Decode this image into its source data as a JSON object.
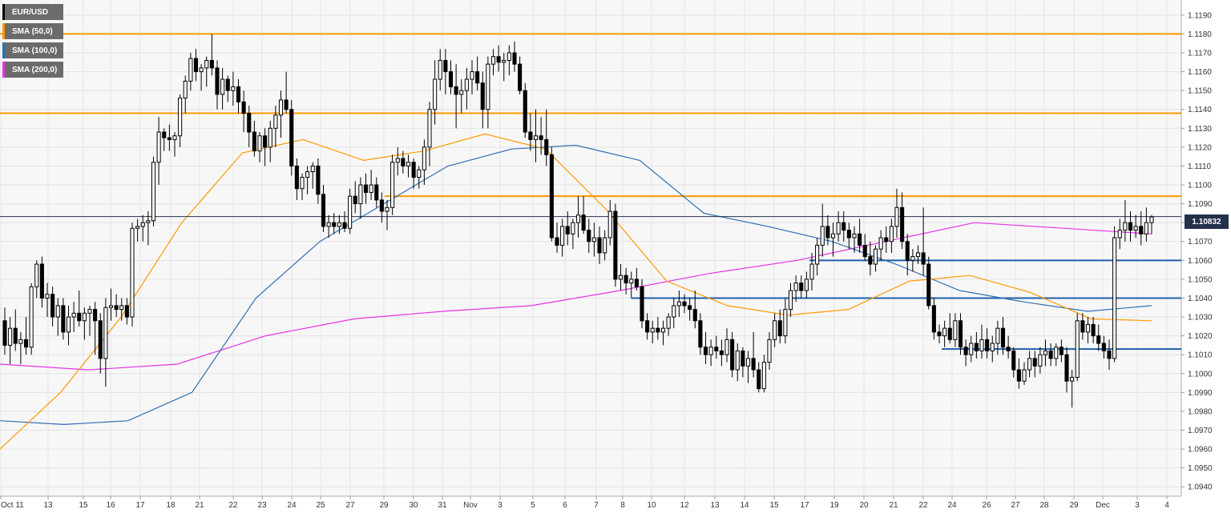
{
  "chart_data": {
    "type": "candlestick",
    "symbol": "EUR/USD",
    "legend": [
      {
        "label": "EUR/USD",
        "color": "#000000"
      },
      {
        "label": "SMA (50,0)",
        "color": "#ff9800"
      },
      {
        "label": "SMA (100,0)",
        "color": "#2f6eb5"
      },
      {
        "label": "SMA (200,0)",
        "color": "#e633e6"
      }
    ],
    "last_price_label": "1.10832",
    "last_price": 1.10832,
    "ylim": [
      1.0935,
      1.1198
    ],
    "y_ticks": [
      "1.0940",
      "1.0950",
      "1.0960",
      "1.0970",
      "1.0980",
      "1.0990",
      "1.1000",
      "1.1010",
      "1.1020",
      "1.1030",
      "1.1040",
      "1.1050",
      "1.1060",
      "1.1070",
      "1.1080",
      "1.1090",
      "1.1100",
      "1.1110",
      "1.1120",
      "1.1130",
      "1.1140",
      "1.1150",
      "1.1160",
      "1.1170",
      "1.1180",
      "1.1190"
    ],
    "x_ticks": [
      "Oct 11",
      "13",
      "15",
      "16",
      "17",
      "18",
      "21",
      "22",
      "23",
      "24",
      "25",
      "27",
      "29",
      "30",
      "31",
      "Nov",
      "3",
      "5",
      "6",
      "7",
      "8",
      "10",
      "12",
      "13",
      "14",
      "15",
      "17",
      "19",
      "20",
      "21",
      "22",
      "24",
      "26",
      "27",
      "28",
      "29",
      "Dec",
      "3",
      "4"
    ],
    "resistance_levels": [
      1.118,
      1.1138,
      1.1094
    ],
    "support_levels": [
      {
        "value": 1.106,
        "from": "19"
      },
      {
        "value": 1.104,
        "from": "8"
      },
      {
        "value": 1.1013,
        "from": "24"
      }
    ],
    "sma50": [
      1.096,
      1.099,
      1.103,
      1.108,
      1.1117,
      1.1124,
      1.1113,
      1.1118,
      1.1127,
      1.1119,
      1.1087,
      1.1049,
      1.1036,
      1.1031,
      1.1034,
      1.1049,
      1.1052,
      1.1043,
      1.1029,
      1.1028
    ],
    "sma100": [
      1.0975,
      1.0973,
      1.0975,
      1.099,
      1.104,
      1.107,
      1.109,
      1.111,
      1.1119,
      1.1121,
      1.1113,
      1.1085,
      1.1078,
      1.107,
      1.1058,
      1.1044,
      1.1038,
      1.1033,
      1.1036
    ],
    "sma200": [
      1.1005,
      1.1002,
      1.1005,
      1.102,
      1.1029,
      1.1033,
      1.1036,
      1.1044,
      1.1053,
      1.106,
      1.107,
      1.108,
      1.1077,
      1.1074
    ],
    "ohlc": [
      [
        1.1028,
        1.1035,
        1.101,
        1.1015
      ],
      [
        1.1015,
        1.103,
        1.1005,
        1.1024
      ],
      [
        1.1024,
        1.1034,
        1.1012,
        1.1016
      ],
      [
        1.1016,
        1.1022,
        1.1005,
        1.1018
      ],
      [
        1.1018,
        1.103,
        1.101,
        1.1014
      ],
      [
        1.1014,
        1.1048,
        1.101,
        1.1046
      ],
      [
        1.1046,
        1.106,
        1.104,
        1.1058
      ],
      [
        1.1058,
        1.1062,
        1.1035,
        1.104
      ],
      [
        1.104,
        1.1048,
        1.103,
        1.1042
      ],
      [
        1.1042,
        1.1046,
        1.1025,
        1.103
      ],
      [
        1.103,
        1.104,
        1.102,
        1.1036
      ],
      [
        1.1036,
        1.104,
        1.1018,
        1.1022
      ],
      [
        1.1022,
        1.1036,
        1.1015,
        1.103
      ],
      [
        1.103,
        1.1038,
        1.1022,
        1.1032
      ],
      [
        1.1032,
        1.1044,
        1.1025,
        1.1028
      ],
      [
        1.1028,
        1.1035,
        1.1018,
        1.1032
      ],
      [
        1.1032,
        1.1036,
        1.102,
        1.1034
      ],
      [
        1.1034,
        1.1038,
        1.101,
        1.1028
      ],
      [
        1.1028,
        1.1032,
        1.1,
        1.1008
      ],
      [
        1.1008,
        1.104,
        1.0993,
        1.1035
      ],
      [
        1.1035,
        1.1045,
        1.1028,
        1.1036
      ],
      [
        1.1036,
        1.1042,
        1.103,
        1.1034
      ],
      [
        1.1034,
        1.104,
        1.1028,
        1.1036
      ],
      [
        1.1036,
        1.104,
        1.1026,
        1.103
      ],
      [
        1.103,
        1.108,
        1.1025,
        1.1077
      ],
      [
        1.1077,
        1.1082,
        1.107,
        1.1078
      ],
      [
        1.1078,
        1.1084,
        1.107,
        1.108
      ],
      [
        1.108,
        1.1086,
        1.1068,
        1.1081
      ],
      [
        1.1081,
        1.1115,
        1.1078,
        1.1112
      ],
      [
        1.1112,
        1.1136,
        1.11,
        1.1128
      ],
      [
        1.1128,
        1.113,
        1.1118,
        1.1125
      ],
      [
        1.1125,
        1.1132,
        1.1118,
        1.1124
      ],
      [
        1.1124,
        1.1128,
        1.1115,
        1.1126
      ],
      [
        1.1126,
        1.1148,
        1.112,
        1.1146
      ],
      [
        1.1146,
        1.1158,
        1.1138,
        1.1155
      ],
      [
        1.1155,
        1.117,
        1.115,
        1.1167
      ],
      [
        1.1167,
        1.1172,
        1.1155,
        1.116
      ],
      [
        1.116,
        1.1164,
        1.115,
        1.1162
      ],
      [
        1.1162,
        1.1168,
        1.1152,
        1.1166
      ],
      [
        1.1166,
        1.118,
        1.1158,
        1.1162
      ],
      [
        1.1162,
        1.1166,
        1.114,
        1.1148
      ],
      [
        1.1148,
        1.1162,
        1.114,
        1.1156
      ],
      [
        1.1156,
        1.1158,
        1.1144,
        1.115
      ],
      [
        1.115,
        1.116,
        1.1142,
        1.1152
      ],
      [
        1.1152,
        1.1156,
        1.1138,
        1.1144
      ],
      [
        1.1144,
        1.115,
        1.1128,
        1.1138
      ],
      [
        1.1138,
        1.1142,
        1.112,
        1.1128
      ],
      [
        1.1128,
        1.1134,
        1.1115,
        1.1118
      ],
      [
        1.1118,
        1.1128,
        1.1112,
        1.1126
      ],
      [
        1.1126,
        1.113,
        1.111,
        1.112
      ],
      [
        1.112,
        1.1134,
        1.1112,
        1.113
      ],
      [
        1.113,
        1.1142,
        1.112,
        1.1137
      ],
      [
        1.1137,
        1.115,
        1.1125,
        1.1145
      ],
      [
        1.1145,
        1.116,
        1.1138,
        1.114
      ],
      [
        1.114,
        1.1145,
        1.1105,
        1.111
      ],
      [
        1.111,
        1.1114,
        1.1092,
        1.1098
      ],
      [
        1.1098,
        1.1106,
        1.1092,
        1.1104
      ],
      [
        1.1104,
        1.111,
        1.1095,
        1.1107
      ],
      [
        1.1107,
        1.1112,
        1.1098,
        1.111
      ],
      [
        1.111,
        1.1114,
        1.109,
        1.1095
      ],
      [
        1.1095,
        1.11,
        1.1075,
        1.1078
      ],
      [
        1.1078,
        1.1084,
        1.1072,
        1.108
      ],
      [
        1.108,
        1.1085,
        1.1074,
        1.1078
      ],
      [
        1.1078,
        1.1084,
        1.1074,
        1.108
      ],
      [
        1.108,
        1.1086,
        1.1075,
        1.1077
      ],
      [
        1.1077,
        1.1098,
        1.1074,
        1.1094
      ],
      [
        1.1094,
        1.1102,
        1.1085,
        1.109
      ],
      [
        1.109,
        1.1104,
        1.1082,
        1.11
      ],
      [
        1.11,
        1.1106,
        1.109,
        1.1096
      ],
      [
        1.1096,
        1.1108,
        1.1092,
        1.11
      ],
      [
        1.11,
        1.1104,
        1.1088,
        1.1092
      ],
      [
        1.1092,
        1.1096,
        1.108,
        1.1086
      ],
      [
        1.1086,
        1.1092,
        1.1076,
        1.1088
      ],
      [
        1.1088,
        1.1116,
        1.1084,
        1.1112
      ],
      [
        1.1112,
        1.112,
        1.1105,
        1.1114
      ],
      [
        1.1114,
        1.1118,
        1.1106,
        1.111
      ],
      [
        1.111,
        1.1116,
        1.1104,
        1.1112
      ],
      [
        1.1112,
        1.1114,
        1.1098,
        1.1104
      ],
      [
        1.1104,
        1.111,
        1.1098,
        1.1108
      ],
      [
        1.1108,
        1.1124,
        1.11,
        1.112
      ],
      [
        1.112,
        1.1144,
        1.111,
        1.114
      ],
      [
        1.114,
        1.1166,
        1.1132,
        1.1156
      ],
      [
        1.1156,
        1.1172,
        1.115,
        1.1166
      ],
      [
        1.1166,
        1.1172,
        1.1148,
        1.116
      ],
      [
        1.116,
        1.1166,
        1.1148,
        1.1152
      ],
      [
        1.1152,
        1.1164,
        1.113,
        1.1148
      ],
      [
        1.1148,
        1.1156,
        1.1138,
        1.115
      ],
      [
        1.115,
        1.1162,
        1.114,
        1.1156
      ],
      [
        1.1156,
        1.1166,
        1.1148,
        1.116
      ],
      [
        1.116,
        1.1168,
        1.115,
        1.1154
      ],
      [
        1.1154,
        1.116,
        1.113,
        1.114
      ],
      [
        1.114,
        1.1168,
        1.113,
        1.1164
      ],
      [
        1.1164,
        1.1172,
        1.1158,
        1.1168
      ],
      [
        1.1168,
        1.1174,
        1.116,
        1.1165
      ],
      [
        1.1165,
        1.117,
        1.1155,
        1.1166
      ],
      [
        1.1166,
        1.1174,
        1.1158,
        1.117
      ],
      [
        1.117,
        1.1176,
        1.116,
        1.1164
      ],
      [
        1.1164,
        1.1168,
        1.1148,
        1.115
      ],
      [
        1.115,
        1.1154,
        1.1125,
        1.1128
      ],
      [
        1.1128,
        1.1138,
        1.1118,
        1.1124
      ],
      [
        1.1124,
        1.114,
        1.1112,
        1.1126
      ],
      [
        1.1126,
        1.1136,
        1.1116,
        1.1124
      ],
      [
        1.1124,
        1.114,
        1.111,
        1.1116
      ],
      [
        1.1116,
        1.112,
        1.107,
        1.1072
      ],
      [
        1.1072,
        1.108,
        1.1064,
        1.1068
      ],
      [
        1.1068,
        1.1082,
        1.1062,
        1.1078
      ],
      [
        1.1078,
        1.1086,
        1.1068,
        1.1074
      ],
      [
        1.1074,
        1.1082,
        1.1066,
        1.108
      ],
      [
        1.108,
        1.1094,
        1.1072,
        1.1084
      ],
      [
        1.1084,
        1.1094,
        1.1074,
        1.1076
      ],
      [
        1.1076,
        1.1082,
        1.1064,
        1.107
      ],
      [
        1.107,
        1.108,
        1.1062,
        1.1072
      ],
      [
        1.1072,
        1.1078,
        1.1058,
        1.1064
      ],
      [
        1.1064,
        1.1076,
        1.106,
        1.1072
      ],
      [
        1.1072,
        1.1092,
        1.1068,
        1.1086
      ],
      [
        1.1086,
        1.109,
        1.1046,
        1.105
      ],
      [
        1.105,
        1.1058,
        1.1044,
        1.1052
      ],
      [
        1.1052,
        1.1056,
        1.1042,
        1.1048
      ],
      [
        1.1048,
        1.1054,
        1.104,
        1.105
      ],
      [
        1.105,
        1.1056,
        1.1044,
        1.1046
      ],
      [
        1.1046,
        1.105,
        1.1024,
        1.1028
      ],
      [
        1.1028,
        1.1032,
        1.1018,
        1.1022
      ],
      [
        1.1022,
        1.1028,
        1.1016,
        1.1024
      ],
      [
        1.1024,
        1.103,
        1.1018,
        1.1022
      ],
      [
        1.1022,
        1.1028,
        1.1015,
        1.1024
      ],
      [
        1.1024,
        1.1032,
        1.102,
        1.103
      ],
      [
        1.103,
        1.104,
        1.1024,
        1.1036
      ],
      [
        1.1036,
        1.1044,
        1.103,
        1.1038
      ],
      [
        1.1038,
        1.1042,
        1.1032,
        1.1036
      ],
      [
        1.1036,
        1.104,
        1.1028,
        1.1034
      ],
      [
        1.1034,
        1.1044,
        1.1024,
        1.1028
      ],
      [
        1.1028,
        1.1032,
        1.101,
        1.1014
      ],
      [
        1.1014,
        1.1022,
        1.1005,
        1.101
      ],
      [
        1.101,
        1.1018,
        1.1004,
        1.1014
      ],
      [
        1.1014,
        1.102,
        1.1008,
        1.1012
      ],
      [
        1.1012,
        1.1018,
        1.1004,
        1.101
      ],
      [
        1.101,
        1.1024,
        1.1006,
        1.1018
      ],
      [
        1.1018,
        1.1022,
        1.0998,
        1.1002
      ],
      [
        1.1002,
        1.1016,
        1.0996,
        1.1012
      ],
      [
        1.1012,
        1.1014,
        1.0998,
        1.1004
      ],
      [
        1.1004,
        1.1012,
        1.0995,
        1.1008
      ],
      [
        1.1008,
        1.1022,
        1.0998,
        1.1002
      ],
      [
        1.1002,
        1.1006,
        1.099,
        1.0992
      ],
      [
        1.0992,
        1.101,
        1.099,
        1.1006
      ],
      [
        1.1006,
        1.1022,
        1.1002,
        1.1018
      ],
      [
        1.1018,
        1.1032,
        1.1014,
        1.1028
      ],
      [
        1.1028,
        1.1034,
        1.1016,
        1.102
      ],
      [
        1.102,
        1.104,
        1.1016,
        1.1034
      ],
      [
        1.1034,
        1.1048,
        1.103,
        1.1044
      ],
      [
        1.1044,
        1.1052,
        1.1038,
        1.1048
      ],
      [
        1.1048,
        1.1052,
        1.104,
        1.1044
      ],
      [
        1.1044,
        1.1054,
        1.104,
        1.105
      ],
      [
        1.105,
        1.1064,
        1.1044,
        1.1058
      ],
      [
        1.1058,
        1.1072,
        1.1052,
        1.1068
      ],
      [
        1.1068,
        1.109,
        1.1062,
        1.1078
      ],
      [
        1.1078,
        1.1084,
        1.1068,
        1.1072
      ],
      [
        1.1072,
        1.108,
        1.1062,
        1.1074
      ],
      [
        1.1074,
        1.1086,
        1.107,
        1.108
      ],
      [
        1.108,
        1.1086,
        1.107,
        1.1076
      ],
      [
        1.1076,
        1.108,
        1.1066,
        1.1072
      ],
      [
        1.1072,
        1.1078,
        1.1064,
        1.1074
      ],
      [
        1.1074,
        1.1082,
        1.1064,
        1.1068
      ],
      [
        1.1068,
        1.1074,
        1.106,
        1.1062
      ],
      [
        1.1062,
        1.107,
        1.1052,
        1.1058
      ],
      [
        1.1058,
        1.1068,
        1.1054,
        1.1066
      ],
      [
        1.1066,
        1.1076,
        1.106,
        1.1072
      ],
      [
        1.1072,
        1.1078,
        1.1064,
        1.107
      ],
      [
        1.107,
        1.1082,
        1.1064,
        1.1078
      ],
      [
        1.1078,
        1.1098,
        1.1072,
        1.1088
      ],
      [
        1.1088,
        1.1096,
        1.1066,
        1.107
      ],
      [
        1.107,
        1.1074,
        1.1052,
        1.106
      ],
      [
        1.106,
        1.1066,
        1.1054,
        1.1062
      ],
      [
        1.1062,
        1.1068,
        1.1058,
        1.1064
      ],
      [
        1.1064,
        1.1088,
        1.1052,
        1.1058
      ],
      [
        1.1058,
        1.1062,
        1.1034,
        1.1036
      ],
      [
        1.1036,
        1.104,
        1.1018,
        1.1022
      ],
      [
        1.1022,
        1.1026,
        1.1016,
        1.102
      ],
      [
        1.102,
        1.1028,
        1.1014,
        1.1024
      ],
      [
        1.1024,
        1.1032,
        1.1016,
        1.1018
      ],
      [
        1.1018,
        1.1032,
        1.1014,
        1.1028
      ],
      [
        1.1028,
        1.1032,
        1.101,
        1.1014
      ],
      [
        1.1014,
        1.1018,
        1.1004,
        1.101
      ],
      [
        1.101,
        1.102,
        1.1006,
        1.1016
      ],
      [
        1.1016,
        1.1022,
        1.1008,
        1.1012
      ],
      [
        1.1012,
        1.1026,
        1.1008,
        1.1018
      ],
      [
        1.1018,
        1.1024,
        1.1008,
        1.1012
      ],
      [
        1.1012,
        1.102,
        1.1006,
        1.1016
      ],
      [
        1.1016,
        1.1028,
        1.101,
        1.1024
      ],
      [
        1.1024,
        1.103,
        1.101,
        1.1014
      ],
      [
        1.1014,
        1.102,
        1.1008,
        1.1012
      ],
      [
        1.1012,
        1.1014,
        1.0998,
        1.1002
      ],
      [
        1.1002,
        1.1008,
        1.0992,
        1.0996
      ],
      [
        1.0996,
        1.1006,
        1.0994,
        1.1002
      ],
      [
        1.1002,
        1.1012,
        1.0998,
        1.1008
      ],
      [
        1.1008,
        1.1012,
        1.0998,
        1.1004
      ],
      [
        1.1004,
        1.1014,
        1.1,
        1.101
      ],
      [
        1.101,
        1.1018,
        1.1004,
        1.1012
      ],
      [
        1.1012,
        1.1016,
        1.1004,
        1.1008
      ],
      [
        1.1008,
        1.1016,
        1.1004,
        1.1014
      ],
      [
        1.1014,
        1.1018,
        1.1006,
        1.101
      ],
      [
        1.101,
        1.1014,
        1.099,
        1.0996
      ],
      [
        1.0996,
        1.1002,
        1.0982,
        1.0998
      ],
      [
        1.0998,
        1.1032,
        1.0996,
        1.1028
      ],
      [
        1.1028,
        1.1032,
        1.1018,
        1.1022
      ],
      [
        1.1022,
        1.103,
        1.1016,
        1.1026
      ],
      [
        1.1026,
        1.103,
        1.1016,
        1.102
      ],
      [
        1.102,
        1.1026,
        1.1012,
        1.1016
      ],
      [
        1.1016,
        1.102,
        1.1008,
        1.1012
      ],
      [
        1.1012,
        1.1018,
        1.1002,
        1.1008
      ],
      [
        1.1008,
        1.1078,
        1.1006,
        1.1072
      ],
      [
        1.1072,
        1.1082,
        1.1066,
        1.1076
      ],
      [
        1.1076,
        1.1092,
        1.107,
        1.108
      ],
      [
        1.108,
        1.1086,
        1.107,
        1.1076
      ],
      [
        1.1076,
        1.1084,
        1.1072,
        1.1078
      ],
      [
        1.1078,
        1.1086,
        1.1068,
        1.1074
      ],
      [
        1.1074,
        1.1088,
        1.107,
        1.108
      ],
      [
        1.108,
        1.1084,
        1.1074,
        1.1083
      ]
    ]
  }
}
